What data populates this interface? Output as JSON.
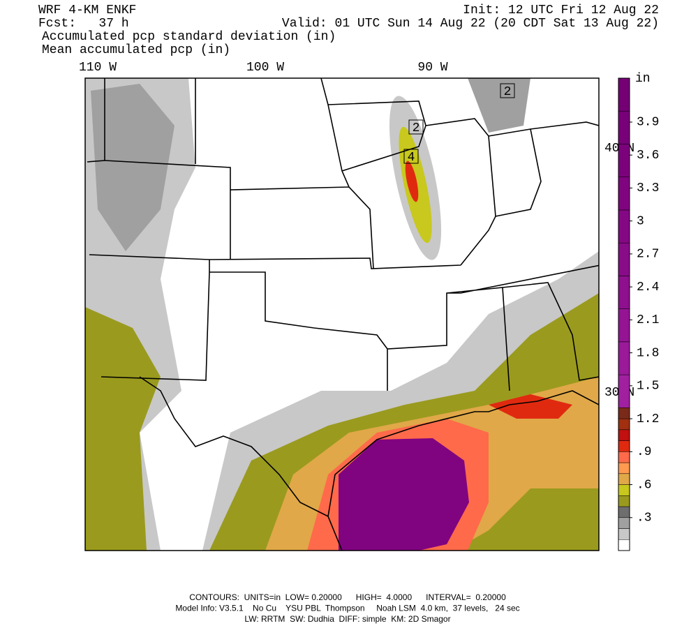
{
  "header": {
    "left": [
      "WRF 4-KM ENKF",
      "Fcst:   37 h",
      "Accumulated pcp standard deviation (in)",
      "Mean accumulated pcp (in)"
    ],
    "right": [
      "Init: 12 UTC Fri 12 Aug 22",
      "Valid: 01 UTC Sun 14 Aug 22 (20 CDT Sat 13 Aug 22)"
    ]
  },
  "map": {
    "longitude_labels": [
      "110 W",
      "100 W",
      "90 W"
    ],
    "latitude_labels": [
      "40 N",
      "30 N"
    ],
    "contour_labels": [
      "2",
      "2",
      "4"
    ]
  },
  "colorbar": {
    "unit": "in",
    "lim": [
      0,
      4.3
    ],
    "ticks": [
      {
        "value": 0.3,
        "label": ".3"
      },
      {
        "value": 0.6,
        "label": ".6"
      },
      {
        "value": 0.9,
        "label": ".9"
      },
      1.2,
      1.5,
      1.8,
      2.1,
      2.4,
      2.7,
      3,
      3.3,
      3.6,
      3.9
    ],
    "bins": [
      0,
      0.1,
      0.2,
      0.3,
      0.4,
      0.5,
      0.6,
      0.7,
      0.8,
      0.9,
      1.0,
      1.1,
      1.2,
      1.3,
      1.6,
      1.9,
      2.2,
      2.5,
      2.8,
      3.1,
      3.4,
      3.7,
      4.0,
      4.3
    ],
    "colors": [
      "#ffffff",
      "#c8c8c8",
      "#a0a0a0",
      "#6e6e6e",
      "#9a9a1e",
      "#c8c81e",
      "#e0a848",
      "#ff9a50",
      "#ff6a4a",
      "#e02a10",
      "#c01010",
      "#a03010",
      "#7a2a1a",
      "#a020a0",
      "#9a1a9a",
      "#941494",
      "#8e108e",
      "#880c88",
      "#840884",
      "#800480",
      "#7c027c",
      "#780078",
      "#740074"
    ]
  },
  "footer": [
    "CONTOURS:  UNITS=in  LOW= 0.20000      HIGH=  4.0000      INTERVAL=  0.20000",
    "Model Info: V3.5.1    No Cu    YSU PBL  Thompson     Noah LSM  4.0 km,  37 levels,   24 sec",
    "LW: RRTM  SW: Dudhia  DIFF: simple  KM: 2D Smagor"
  ]
}
